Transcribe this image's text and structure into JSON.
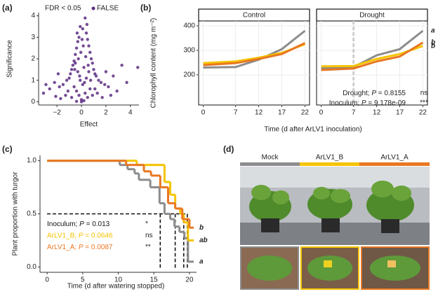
{
  "chart_data": [
    {
      "type": "scatter",
      "label": "(a)",
      "legend_title": "FDR < 0.05",
      "x_label": "Effect",
      "y_label": "Significance",
      "xlim": [
        -3.5,
        4.7
      ],
      "ylim": [
        -0.15,
        4.15
      ],
      "xticks": [
        {
          "value": -2,
          "label": "−2"
        },
        0,
        2,
        4
      ],
      "yticks": [
        0,
        1,
        2,
        3,
        4
      ],
      "series": [
        {
          "name": "FALSE",
          "color": "#5c2d82",
          "x": [
            -0.1,
            0.3,
            0.1,
            -0.2,
            0.4,
            -0.3,
            0.5,
            -0.4,
            0.6,
            -0.5,
            0.7,
            -0.6,
            0.8,
            -0.7,
            0.9,
            -0.8,
            1.0,
            -0.9,
            1.1,
            -1.0,
            1.2,
            -1.2,
            1.4,
            -1.5,
            1.6,
            -1.8,
            1.9,
            -2.2,
            2.2,
            -2.6,
            2.6,
            -3.1,
            3.3,
            4.6,
            -2.9,
            2.9,
            -0.2,
            0.3,
            0,
            0.5,
            -0.4,
            0.1,
            -0.1,
            0.4,
            -0.3,
            0.2,
            0.6,
            -0.5,
            0.35,
            -0.05,
            0.15,
            -0.25,
            0.55,
            -0.15,
            0.25,
            0.7,
            -0.6,
            0.9,
            -0.8,
            1.3,
            -1.3,
            0,
            0.2,
            -0.4,
            1.7,
            -1.7,
            2.4,
            -2.1,
            3.7,
            -0.35,
            0.45,
            0.05,
            -0.55,
            0.75,
            2.0,
            -1.9,
            1.1,
            -1.1
          ],
          "values": [
            3.5,
            3.9,
            3.4,
            3.0,
            3.2,
            2.8,
            2.9,
            2.5,
            2.6,
            2.2,
            2.3,
            1.9,
            2.0,
            1.7,
            1.8,
            1.5,
            1.5,
            1.3,
            1.3,
            1.1,
            1.2,
            1.0,
            1.0,
            0.8,
            0.9,
            0.7,
            0.8,
            0.9,
            0.7,
            0.6,
            1.2,
            0.4,
            1.7,
            1.6,
            0.8,
            0.5,
            0.3,
            0.4,
            0.1,
            0.2,
            0.5,
            0.8,
            1.0,
            1.1,
            1.4,
            1.6,
            1.4,
            1.8,
            2.1,
            2.3,
            2.6,
            2.0,
            1.7,
            1.2,
            0.9,
            0.6,
            0.7,
            0.3,
            0.2,
            0.4,
            0.3,
            0,
            0.05,
            0.02,
            0.2,
            0.15,
            0.3,
            0.25,
            0.9,
            3.2,
            3.6,
            2.9,
            1.5,
            1.0,
            1.4,
            1.3,
            0.6,
            0.5
          ]
        }
      ]
    },
    {
      "type": "line",
      "label": "(b)",
      "y_label": "Chlorophyll content (mg m⁻²)",
      "x_label": "Time (d after ArLV1 inoculation)",
      "xlim": [
        -1,
        23
      ],
      "ylim": [
        77,
        420
      ],
      "xticks": [
        0,
        7,
        12,
        17,
        22
      ],
      "yticks": [
        200,
        300,
        400
      ],
      "grid": true,
      "x": [
        0,
        7,
        12,
        17,
        22
      ],
      "facets": [
        {
          "title": "Control",
          "series": [
            {
              "color": "#8c8c8c",
              "values": [
                230,
                232,
                262,
                305,
                380
              ]
            },
            {
              "color": "#f5c400",
              "values": [
                248,
                255,
                270,
                290,
                325
              ]
            },
            {
              "color": "#e87722",
              "values": [
                240,
                248,
                265,
                285,
                330
              ]
            }
          ]
        },
        {
          "title": "Drought",
          "vline": 7,
          "series": [
            {
              "color": "#8c8c8c",
              "values": [
                228,
                232,
                280,
                305,
                380
              ],
              "end_label": "a"
            },
            {
              "color": "#f5c400",
              "values": [
                235,
                236,
                265,
                285,
                318
              ],
              "end_label": "b"
            },
            {
              "color": "#e87722",
              "values": [
                220,
                226,
                255,
                275,
                332
              ],
              "end_label": "b"
            }
          ]
        }
      ],
      "annotations": [
        {
          "lead": "Drought; ",
          "p": "P",
          "rest": " = 0.8155",
          "sig": "ns"
        },
        {
          "lead": "Inoculum; ",
          "p": "P",
          "rest": " = 9.178e-09",
          "sig": "***"
        }
      ]
    },
    {
      "type": "step",
      "label": "(c)",
      "y_label": "Plant proportion with turgor",
      "x_label": "Time (d after watering stopped)",
      "xlim": [
        -1,
        21
      ],
      "ylim": [
        -0.05,
        1.05
      ],
      "xticks": [
        0,
        5,
        10,
        15,
        20
      ],
      "yticks": [
        {
          "value": 0,
          "label": "0.0"
        },
        0.5,
        {
          "value": 1,
          "label": "1.0"
        }
      ],
      "series": [
        {
          "color": "#8c8c8c",
          "end_label": "a",
          "x": [
            0,
            10.2,
            11.3,
            12.3,
            12.9,
            14.5,
            15.8,
            16.5,
            17.3,
            17.9,
            18.6,
            19.3,
            19.8,
            20.6
          ],
          "values": [
            1,
            0.96,
            0.92,
            0.88,
            0.82,
            0.75,
            0.6,
            0.5,
            0.45,
            0.38,
            0.33,
            0.27,
            0.05,
            0.05
          ]
        },
        {
          "color": "#f5c400",
          "end_label": "ab",
          "x": [
            0,
            12.6,
            16.5,
            17.3,
            18,
            18.7,
            19.2,
            19.8,
            20.6
          ],
          "values": [
            1,
            0.96,
            0.8,
            0.68,
            0.55,
            0.5,
            0.42,
            0.25,
            0.25
          ]
        },
        {
          "color": "#e87722",
          "end_label": "b",
          "x": [
            0,
            11.1,
            13.6,
            14.6,
            15.9,
            17,
            18,
            19,
            20,
            20.6
          ],
          "values": [
            1,
            0.96,
            0.9,
            0.86,
            0.75,
            0.6,
            0.55,
            0.45,
            0.37,
            0.37
          ]
        }
      ],
      "reference": {
        "y": 0.5,
        "x": [
          15.9,
          18,
          19.2,
          19.7
        ]
      },
      "annotations": [
        {
          "lead": "Inoculum; ",
          "p": "P",
          "rest": " = 0.013",
          "sig": "*",
          "color": "#111111"
        },
        {
          "lead": "ArLV1_B; ",
          "p": "P",
          "rest": " = 0.0646",
          "sig": "ns",
          "color": "#f5c400"
        },
        {
          "lead": "ArLV1_A; ",
          "p": "P",
          "rest": " = 0.0087",
          "sig": "**",
          "color": "#e87722"
        }
      ]
    }
  ],
  "photo": {
    "label": "(d)",
    "groups": [
      {
        "name": "Mock",
        "color": "#8c8c8c"
      },
      {
        "name": "ArLV1_B",
        "color": "#f5c400"
      },
      {
        "name": "ArLV1_A",
        "color": "#e87722"
      }
    ]
  }
}
